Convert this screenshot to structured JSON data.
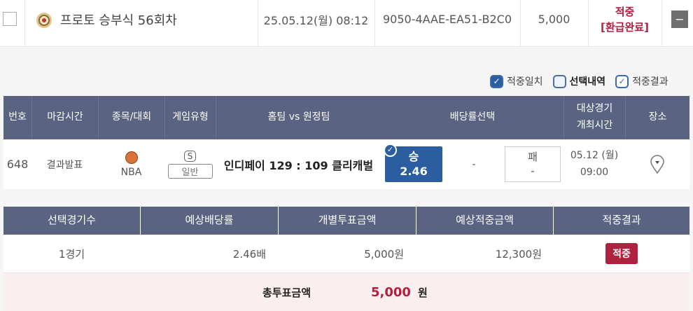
{
  "ticket": {
    "title": "프로토 승부식 56회차",
    "date": "25.05.12(월) 08:12",
    "id": "9050-4AAE-EA51-B2C0",
    "amount": "5,000",
    "status_line1": "적중",
    "status_line2": "[환급완료]",
    "collapse": "−"
  },
  "filters": [
    {
      "label": "적중일치",
      "checked": true
    },
    {
      "label": "선택내역",
      "checked": false
    },
    {
      "label": "적중결과",
      "checked": true
    }
  ],
  "match_table": {
    "headers": [
      "번호",
      "마감시간",
      "종목/대회",
      "게임유형",
      "홈팀 vs 원정팀",
      "배당률선택",
      "대상경기",
      "개최시간",
      "장소"
    ],
    "row": {
      "no": "648",
      "deadline": "결과발표",
      "league": "NBA",
      "type_badge": "S",
      "type": "일반",
      "match": "인디페이 129 : 109 클리캐벌",
      "win_label": "승",
      "win_odds": "2.46",
      "draw": "-",
      "lose_label": "패",
      "lose_odds": "-",
      "date": "05.12 (월)",
      "time": "09:00"
    }
  },
  "summary": {
    "headers": [
      "선택경기수",
      "예상배당률",
      "개별투표금액",
      "예상적중금액",
      "적중결과"
    ],
    "values": [
      "1경기",
      "2.46배",
      "5,000원",
      "12,300원",
      "적중"
    ],
    "total_label": "총투표금액",
    "total_value": "5,000",
    "total_unit": "원"
  },
  "colors": {
    "header": "#5a6482",
    "accent_red": "#b0203f",
    "selected_blue": "#2a5ea0"
  }
}
